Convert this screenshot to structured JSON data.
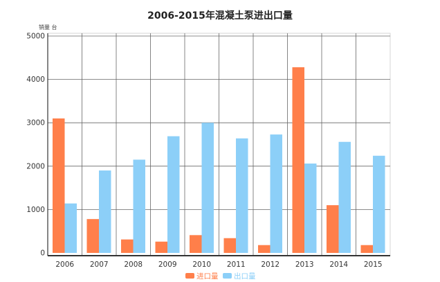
{
  "chart_data": {
    "type": "bar",
    "title": "2006-2015年混凝土泵进出口量",
    "unit_label": "销量 台",
    "categories": [
      "2006",
      "2007",
      "2008",
      "2009",
      "2010",
      "2011",
      "2012",
      "2013",
      "2014",
      "2015"
    ],
    "series": [
      {
        "name": "进口量",
        "color": "#ff7f4a",
        "values": [
          3100,
          780,
          310,
          260,
          410,
          340,
          180,
          4280,
          1100,
          180
        ]
      },
      {
        "name": "出口量",
        "color": "#8ccff8",
        "values": [
          1140,
          1900,
          2150,
          2690,
          3000,
          2640,
          2730,
          2060,
          2560,
          2240
        ]
      }
    ],
    "ylim": [
      0,
      5000
    ],
    "yticks": [
      0,
      1000,
      2000,
      3000,
      4000,
      5000
    ],
    "grid": true,
    "legend_position": "bottom-center"
  }
}
